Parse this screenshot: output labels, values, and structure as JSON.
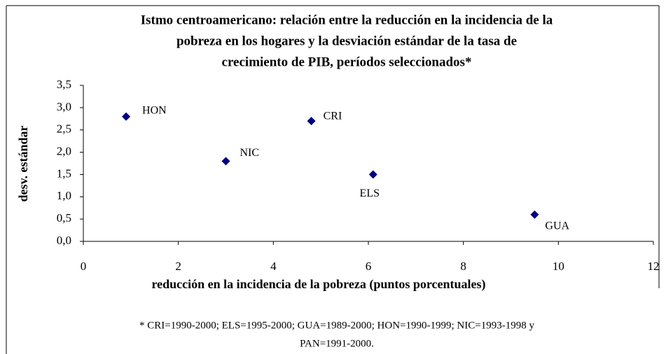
{
  "chart_data": {
    "type": "scatter",
    "title": [
      "Istmo centroamericano: relación entre la reducción en la incidencia de la",
      "pobreza en los hogares y la desviación estándar de la tasa de",
      "crecimiento de PIB, períodos seleccionados*"
    ],
    "xlabel": "reducción en la incidencia de la pobreza (puntos porcentuales)",
    "ylabel": "desv. estándar",
    "x": [
      0.9,
      3.0,
      4.8,
      6.1,
      9.5
    ],
    "values": [
      2.8,
      1.8,
      2.7,
      1.5,
      0.6
    ],
    "labels": [
      "HON",
      "NIC",
      "CRI",
      "ELS",
      "GUA"
    ],
    "color": "#000080",
    "xlim": [
      0,
      12
    ],
    "xticks": [
      0,
      2,
      4,
      6,
      8,
      10,
      12
    ],
    "ylim": [
      0,
      3.5
    ],
    "yticks": [
      {
        "value": 0,
        "label": "0,0"
      },
      {
        "value": 0.5,
        "label": "0,5"
      },
      {
        "value": 1,
        "label": "1,0"
      },
      {
        "value": 1.5,
        "label": "1,5"
      },
      {
        "value": 2,
        "label": "2,0"
      },
      {
        "value": 2.5,
        "label": "2,5"
      },
      {
        "value": 3,
        "label": "3,0"
      },
      {
        "value": 3.5,
        "label": "3,5"
      }
    ],
    "footnote": [
      "* CRI=1990-2000; ELS=1995-2000; GUA=1989-2000; HON=1990-1999; NIC=1993-1998 y",
      "PAN=1991-2000."
    ]
  }
}
